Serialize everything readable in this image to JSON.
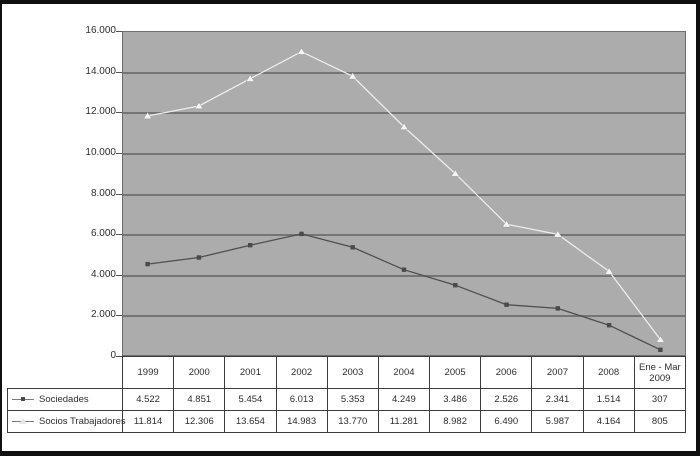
{
  "chart_data": {
    "type": "line",
    "categories": [
      "1999",
      "2000",
      "2001",
      "2002",
      "2003",
      "2004",
      "2005",
      "2006",
      "2007",
      "2008",
      "Ene - Mar 2009"
    ],
    "series": [
      {
        "name": "Sociedades",
        "marker": "square",
        "line_color": "#4f4f4f",
        "marker_color": "#4a4a4a",
        "values": [
          4522,
          4851,
          5454,
          6013,
          5353,
          4249,
          3486,
          2526,
          2341,
          1514,
          307
        ],
        "labels": [
          "4.522",
          "4.851",
          "5.454",
          "6.013",
          "5.353",
          "4.249",
          "3.486",
          "2.526",
          "2.341",
          "1.514",
          "307"
        ]
      },
      {
        "name": "Socios Trabajadores",
        "marker": "triangle",
        "line_color": "#ededed",
        "marker_color": "#f5f5f5",
        "values": [
          11814,
          12306,
          13654,
          14983,
          13770,
          11281,
          8982,
          6490,
          5987,
          4164,
          805
        ],
        "labels": [
          "11.814",
          "12.306",
          "13.654",
          "14.983",
          "13.770",
          "11.281",
          "8.982",
          "6.490",
          "5.987",
          "4.164",
          "805"
        ]
      }
    ],
    "title": "",
    "xlabel": "",
    "ylabel": "",
    "ylim": [
      0,
      16000
    ],
    "ytick_step": 2000,
    "ytick_labels": [
      "16.000",
      "14.000",
      "12.000",
      "10.000",
      "8.000",
      "6.000",
      "4.000",
      "2.000",
      "0"
    ],
    "grid": true,
    "plot_background": "#acacac",
    "gridline_color": "#757575",
    "legend_position": "bottom-left-of-table"
  }
}
